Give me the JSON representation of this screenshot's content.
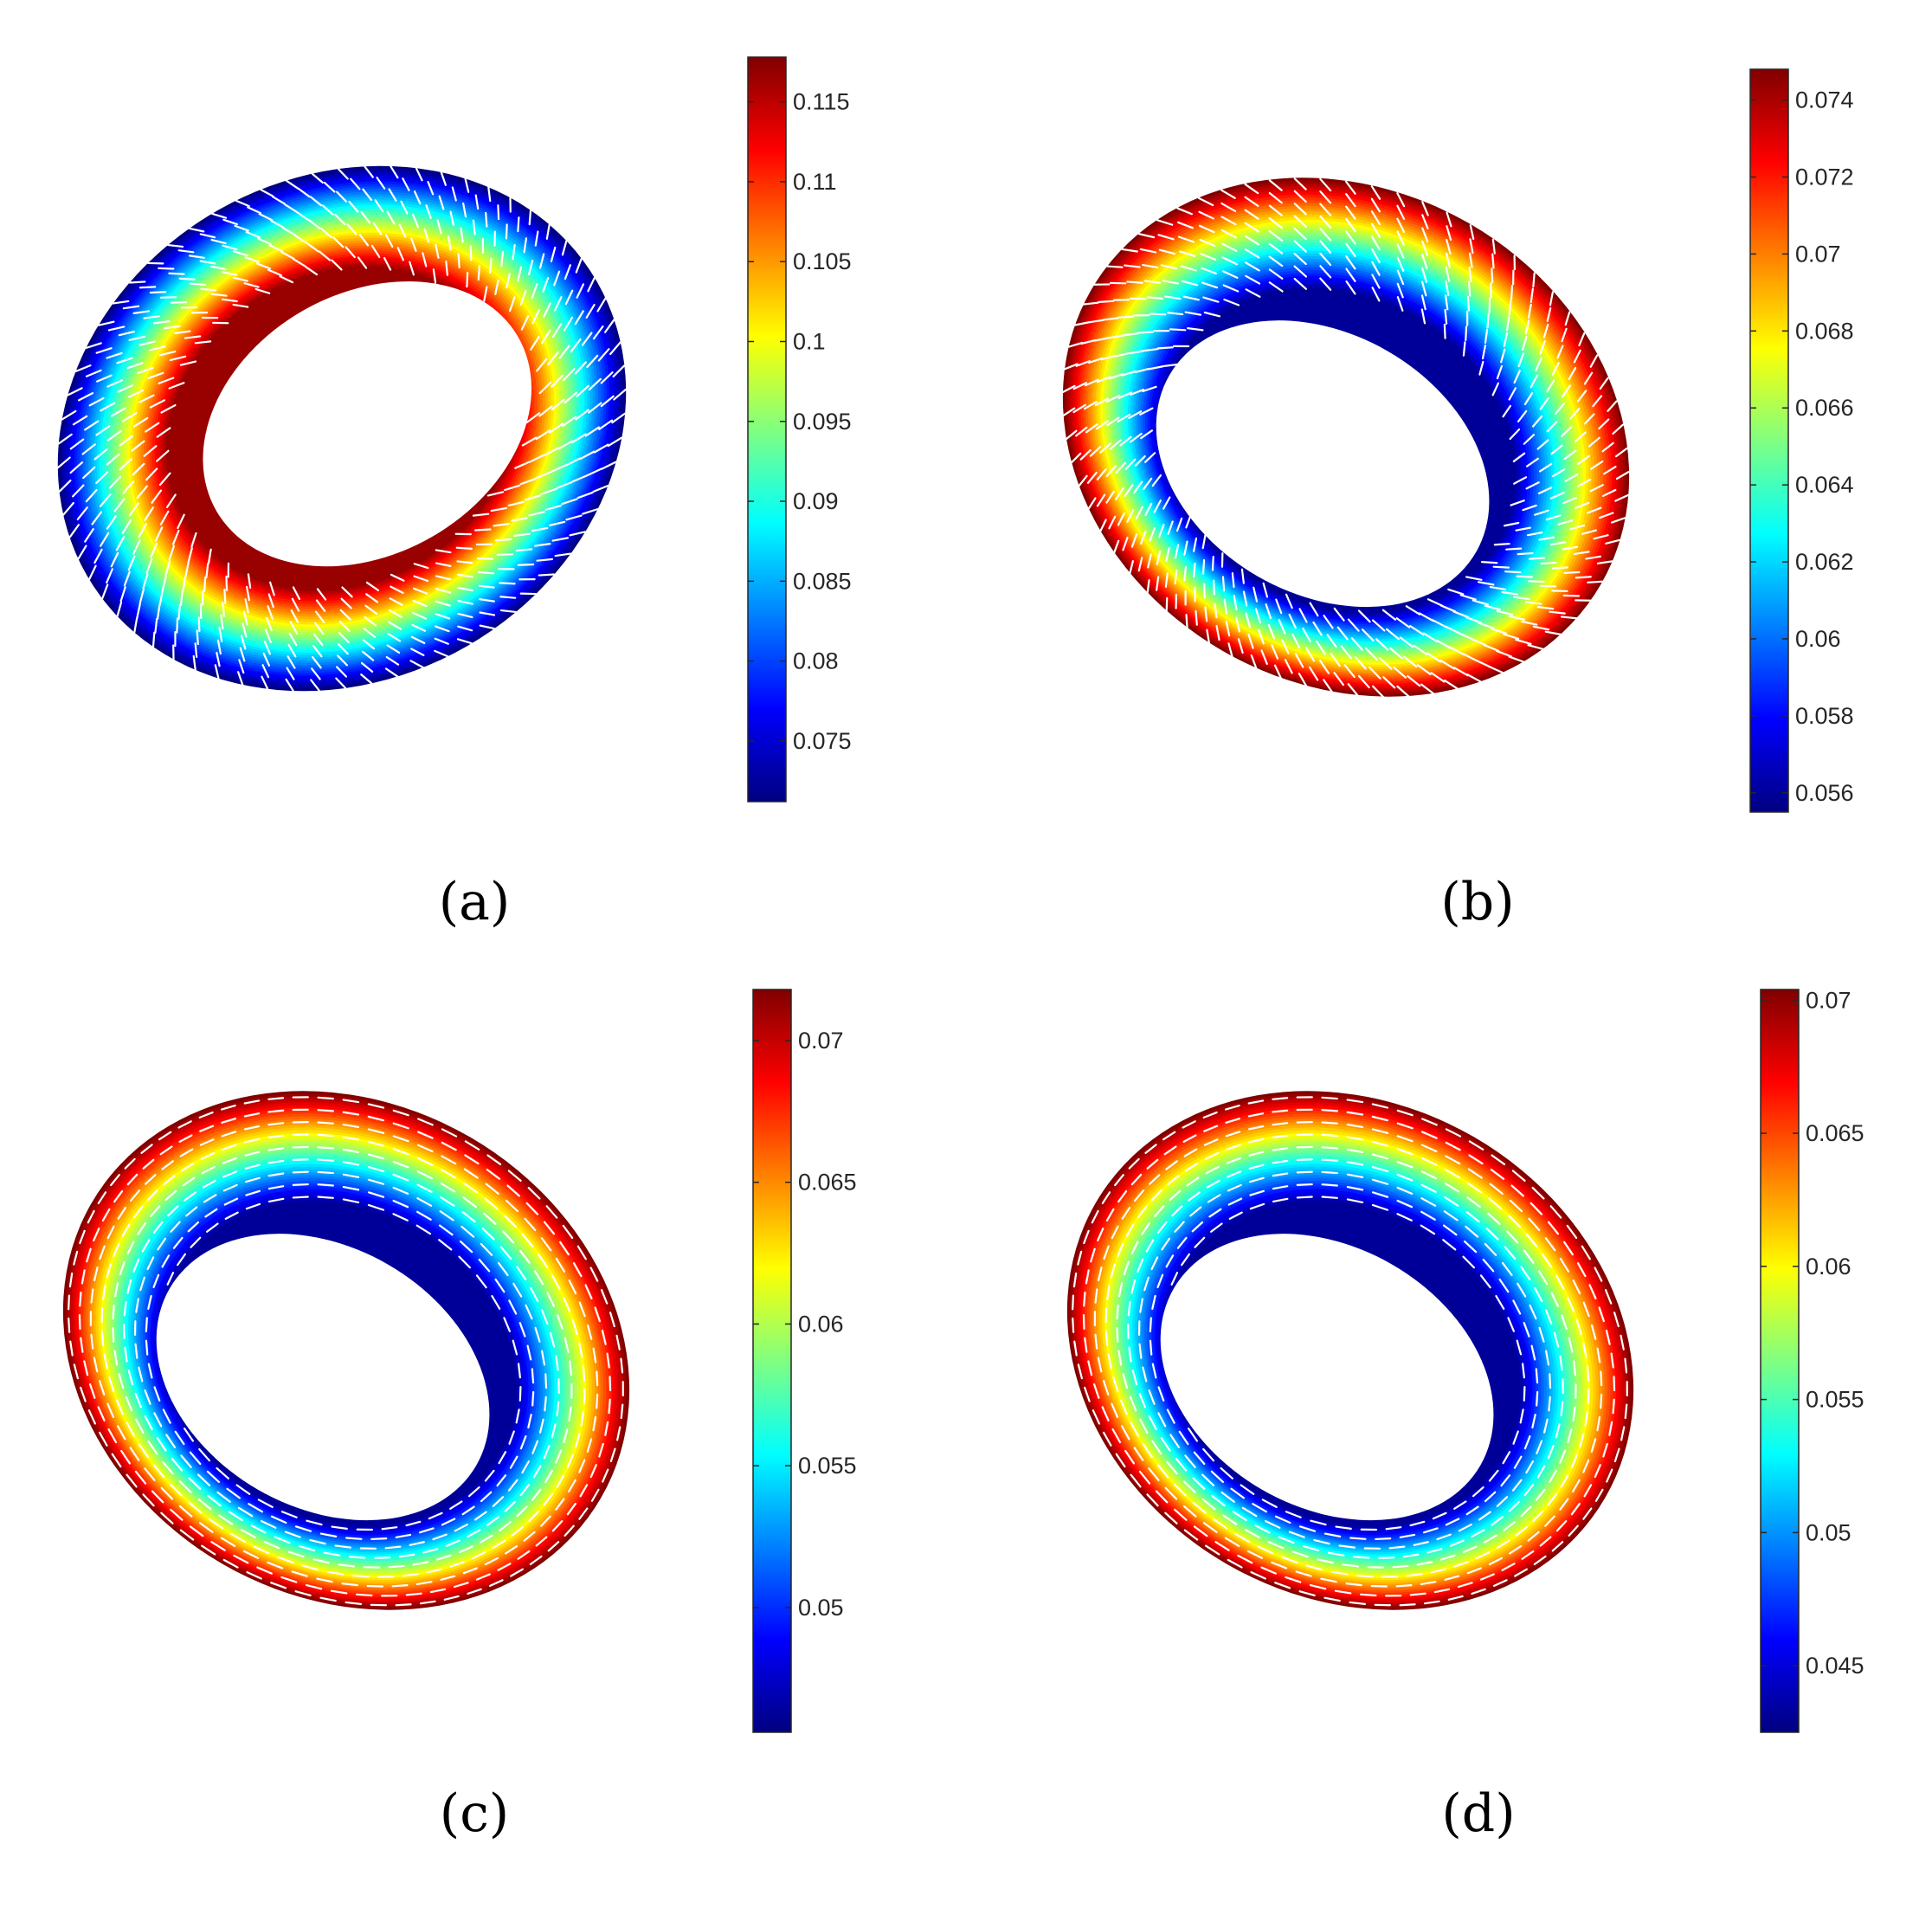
{
  "figure": {
    "panels": [
      {
        "label": "(a)"
      },
      {
        "label": "(b)"
      },
      {
        "label": "(c)"
      },
      {
        "label": "(d)"
      }
    ]
  },
  "colormap": "jet",
  "colors": {
    "arrow": "#ffffff",
    "axis": "#262626",
    "tick_text": "#262626",
    "background": "#ffffff"
  },
  "chart_data": [
    {
      "type": "heatmap",
      "shape": "torus-surface",
      "label": "(a)",
      "colorbar": {
        "colormap": "jet",
        "range": [
          0.0712,
          0.1178
        ],
        "ticks": [
          0.075,
          0.08,
          0.085,
          0.09,
          0.095,
          0.1,
          0.105,
          0.11,
          0.115
        ],
        "tick_labels": [
          "0.075",
          "0.08",
          "0.085",
          "0.09",
          "0.095",
          "0.1",
          "0.105",
          "0.11",
          "0.115"
        ]
      },
      "color_pattern": "maximum on inner equator (hole edge), minimum on outer equator",
      "arrows": "white dashed vector field on surface, oblique"
    },
    {
      "type": "heatmap",
      "shape": "torus-surface",
      "label": "(b)",
      "colorbar": {
        "colormap": "jet",
        "range": [
          0.0555,
          0.0748
        ],
        "ticks": [
          0.056,
          0.058,
          0.06,
          0.062,
          0.064,
          0.066,
          0.068,
          0.07,
          0.072,
          0.074
        ],
        "tick_labels": [
          "0.056",
          "0.058",
          "0.06",
          "0.062",
          "0.064",
          "0.066",
          "0.068",
          "0.07",
          "0.072",
          "0.074"
        ]
      },
      "color_pattern": "maximum on outer equator, minimum on inner equator",
      "arrows": "white dashed vector field on surface, oblique"
    },
    {
      "type": "heatmap",
      "shape": "torus-surface",
      "label": "(c)",
      "colorbar": {
        "colormap": "jet",
        "range": [
          0.0456,
          0.0718
        ],
        "ticks": [
          0.05,
          0.055,
          0.06,
          0.065,
          0.07
        ],
        "tick_labels": [
          "0.05",
          "0.055",
          "0.06",
          "0.065",
          "0.07"
        ]
      },
      "color_pattern": "maximum on outer equator, minimum on inner equator",
      "arrows": "white dashed vector field on surface, nearly horizontal"
    },
    {
      "type": "heatmap",
      "shape": "torus-surface",
      "label": "(d)",
      "colorbar": {
        "colormap": "jet",
        "range": [
          0.0425,
          0.0704
        ],
        "ticks": [
          0.045,
          0.05,
          0.055,
          0.06,
          0.065,
          0.07
        ],
        "tick_labels": [
          "0.045",
          "0.05",
          "0.055",
          "0.06",
          "0.065",
          "0.07"
        ]
      },
      "color_pattern": "maximum on outer equator, minimum on inner equator",
      "arrows": "white dashed vector field on surface, nearly horizontal"
    }
  ]
}
